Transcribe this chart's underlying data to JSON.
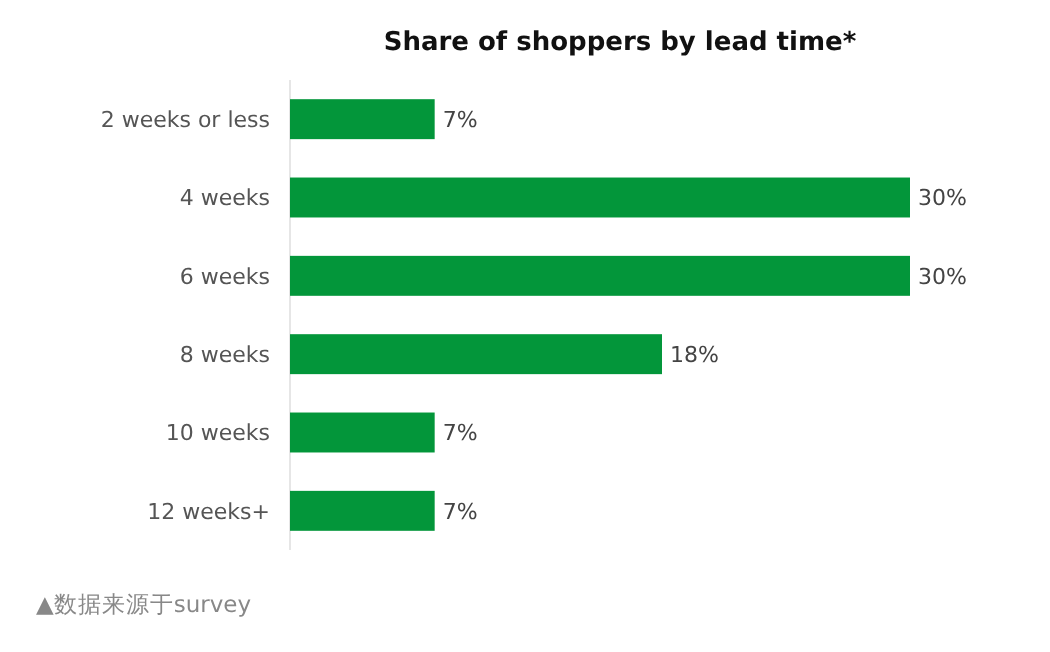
{
  "chart_data": {
    "type": "bar",
    "orientation": "horizontal",
    "title": "Share of shoppers by lead time*",
    "categories": [
      "2 weeks or less",
      "4 weeks",
      "6 weeks",
      "8 weeks",
      "10 weeks",
      "12 weeks+"
    ],
    "values": [
      7,
      30,
      30,
      18,
      7,
      7
    ],
    "value_labels": [
      "7%",
      "30%",
      "30%",
      "18%",
      "7%",
      "7%"
    ],
    "color": "#03963a",
    "annotations": [
      "▲数据来源于survey"
    ]
  }
}
